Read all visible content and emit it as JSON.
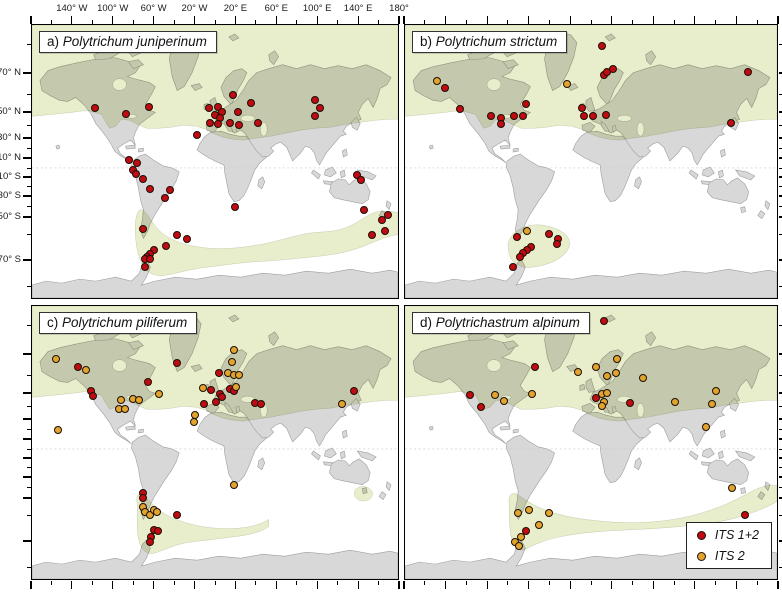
{
  "chart_data": {
    "type": "map",
    "description": "Four world-map panels showing occurrence records of four moss species; markers coded by ITS sequence type; pale green band = distribution range.",
    "axes": {
      "top_labels": [
        "140° W",
        "100° W",
        "60° W",
        "20° W",
        "20° E",
        "60° E",
        "100° E",
        "140° E",
        "180°"
      ],
      "left_labels": [
        "70° N",
        "50° N",
        "30° N",
        "10° N",
        "10° S",
        "30° S",
        "50° S",
        "70° S"
      ]
    },
    "legend": {
      "items": [
        {
          "key": "red",
          "label": "ITS 1+2"
        },
        {
          "key": "orange",
          "label": "ITS 2"
        }
      ]
    },
    "colors": {
      "marker_red": "#c00b12",
      "marker_orange": "#e3a42f",
      "marker_outline": "#1b1006",
      "land": "#d8d8d8",
      "land_border": "#9e9e9e",
      "ocean": "#ffffff",
      "range_band": "#e8edcb",
      "equator_line": "#c9c9c9"
    },
    "panels": [
      {
        "id": "a",
        "prefix": "a)",
        "species": "Polytrichum juniperinum",
        "markers": [
          [
            17.1,
            30.5,
            "r"
          ],
          [
            25.8,
            32.7,
            "r"
          ],
          [
            32.1,
            30.2,
            "r"
          ],
          [
            54.9,
            25.5,
            "r"
          ],
          [
            48.4,
            30.5,
            "r"
          ],
          [
            50.8,
            30.2,
            "r"
          ],
          [
            51.9,
            32.0,
            "r"
          ],
          [
            50.0,
            33.1,
            "r"
          ],
          [
            51.4,
            34.2,
            "r"
          ],
          [
            48.6,
            36.0,
            "r"
          ],
          [
            50.8,
            36.4,
            "r"
          ],
          [
            54.1,
            36.0,
            "r"
          ],
          [
            56.3,
            32.0,
            "r"
          ],
          [
            56.5,
            36.7,
            "r"
          ],
          [
            59.8,
            28.7,
            "r"
          ],
          [
            61.7,
            36.0,
            "r"
          ],
          [
            45.1,
            40.4,
            "r"
          ],
          [
            77.2,
            27.6,
            "r"
          ],
          [
            78.8,
            30.5,
            "r"
          ],
          [
            77.4,
            33.5,
            "r"
          ],
          [
            26.6,
            49.5,
            "r"
          ],
          [
            28.8,
            50.5,
            "r"
          ],
          [
            27.7,
            53.1,
            "r"
          ],
          [
            28.5,
            54.5,
            "r"
          ],
          [
            30.4,
            56.4,
            "r"
          ],
          [
            32.3,
            60.0,
            "r"
          ],
          [
            37.8,
            60.4,
            "r"
          ],
          [
            36.4,
            63.3,
            "r"
          ],
          [
            55.4,
            66.5,
            "r"
          ],
          [
            88.9,
            54.9,
            "r"
          ],
          [
            89.9,
            56.7,
            "r"
          ],
          [
            90.8,
            67.6,
            "r"
          ],
          [
            95.7,
            71.3,
            "r"
          ],
          [
            97.3,
            69.5,
            "r"
          ],
          [
            96.5,
            75.3,
            "r"
          ],
          [
            92.9,
            77.1,
            "r"
          ],
          [
            30.4,
            74.9,
            "r"
          ],
          [
            39.7,
            77.1,
            "r"
          ],
          [
            42.4,
            78.5,
            "r"
          ],
          [
            36.7,
            81.1,
            "r"
          ],
          [
            33.4,
            82.5,
            "r"
          ],
          [
            32.3,
            84.0,
            "r"
          ],
          [
            31.5,
            85.1,
            "r"
          ],
          [
            31.0,
            85.8,
            "r"
          ],
          [
            32.3,
            85.8,
            "r"
          ],
          [
            31.0,
            88.7,
            "r"
          ]
        ]
      },
      {
        "id": "b",
        "prefix": "b)",
        "species": "Polytrichum strictum",
        "markers": [
          [
            52.9,
            7.6,
            "r"
          ],
          [
            53.5,
            18.2,
            "r"
          ],
          [
            54.3,
            17.1,
            "r"
          ],
          [
            55.9,
            16.0,
            "r"
          ],
          [
            92.2,
            17.1,
            "r"
          ],
          [
            8.6,
            20.4,
            "o"
          ],
          [
            10.7,
            22.9,
            "r"
          ],
          [
            43.6,
            21.5,
            "o"
          ],
          [
            14.7,
            30.9,
            "r"
          ],
          [
            32.6,
            29.1,
            "r"
          ],
          [
            23.0,
            33.5,
            "r"
          ],
          [
            25.9,
            34.2,
            "r"
          ],
          [
            25.9,
            36.4,
            "r"
          ],
          [
            29.4,
            33.5,
            "r"
          ],
          [
            31.8,
            33.5,
            "r"
          ],
          [
            47.6,
            30.5,
            "r"
          ],
          [
            48.1,
            33.5,
            "r"
          ],
          [
            50.5,
            33.5,
            "r"
          ],
          [
            54.0,
            33.1,
            "r"
          ],
          [
            87.7,
            36.0,
            "r"
          ],
          [
            32.9,
            75.3,
            "o"
          ],
          [
            30.2,
            77.8,
            "r"
          ],
          [
            38.8,
            76.7,
            "r"
          ],
          [
            41.2,
            78.5,
            "r"
          ],
          [
            40.9,
            80.4,
            "r"
          ],
          [
            34.0,
            81.5,
            "r"
          ],
          [
            32.9,
            82.5,
            "r"
          ],
          [
            31.8,
            83.6,
            "r"
          ],
          [
            31.0,
            85.1,
            "r"
          ],
          [
            28.9,
            88.7,
            "r"
          ]
        ]
      },
      {
        "id": "c",
        "prefix": "c)",
        "species": "Polytrichum piliferum",
        "markers": [
          [
            6.5,
            19.3,
            "o"
          ],
          [
            12.5,
            22.2,
            "r"
          ],
          [
            14.7,
            23.6,
            "o"
          ],
          [
            16.0,
            31.3,
            "r"
          ],
          [
            16.6,
            33.1,
            "r"
          ],
          [
            24.2,
            34.5,
            "o"
          ],
          [
            27.7,
            34.2,
            "o"
          ],
          [
            29.1,
            34.5,
            "o"
          ],
          [
            23.9,
            37.8,
            "o"
          ],
          [
            25.5,
            37.8,
            "o"
          ],
          [
            31.8,
            28.0,
            "r"
          ],
          [
            34.8,
            32.4,
            "o"
          ],
          [
            39.7,
            20.7,
            "r"
          ],
          [
            7.1,
            45.5,
            "o"
          ],
          [
            46.7,
            30.2,
            "o"
          ],
          [
            55.2,
            16.0,
            "o"
          ],
          [
            54.6,
            20.4,
            "o"
          ],
          [
            51.1,
            24.4,
            "r"
          ],
          [
            53.5,
            24.7,
            "o"
          ],
          [
            55.2,
            25.1,
            "o"
          ],
          [
            56.5,
            25.1,
            "o"
          ],
          [
            48.9,
            30.9,
            "r"
          ],
          [
            47.0,
            36.0,
            "r"
          ],
          [
            50.3,
            35.3,
            "r"
          ],
          [
            51.4,
            32.4,
            "r"
          ],
          [
            51.9,
            33.5,
            "r"
          ],
          [
            54.1,
            30.5,
            "r"
          ],
          [
            55.2,
            31.3,
            "r"
          ],
          [
            55.7,
            29.5,
            "o"
          ],
          [
            60.9,
            35.6,
            "r"
          ],
          [
            62.5,
            36.0,
            "r"
          ],
          [
            44.6,
            40.0,
            "o"
          ],
          [
            44.3,
            42.5,
            "o"
          ],
          [
            84.8,
            36.0,
            "o"
          ],
          [
            88.0,
            31.3,
            "r"
          ],
          [
            55.2,
            65.5,
            "o"
          ],
          [
            30.4,
            68.4,
            "r"
          ],
          [
            30.4,
            70.5,
            "r"
          ],
          [
            30.4,
            73.5,
            "o"
          ],
          [
            31.0,
            75.6,
            "o"
          ],
          [
            32.3,
            76.7,
            "o"
          ],
          [
            33.4,
            74.9,
            "o"
          ],
          [
            34.2,
            75.3,
            "o"
          ],
          [
            39.7,
            76.4,
            "r"
          ],
          [
            33.4,
            82.2,
            "r"
          ],
          [
            34.5,
            82.5,
            "r"
          ],
          [
            32.6,
            84.7,
            "r"
          ],
          [
            32.3,
            86.5,
            "r"
          ]
        ]
      },
      {
        "id": "d",
        "prefix": "d)",
        "species": "Polytrichastrum alpinum",
        "markers": [
          [
            53.5,
            5.5,
            "r"
          ],
          [
            35.0,
            22.5,
            "r"
          ],
          [
            46.5,
            24.0,
            "o"
          ],
          [
            51.3,
            22.5,
            "o"
          ],
          [
            57.0,
            19.3,
            "o"
          ],
          [
            54.3,
            25.8,
            "o"
          ],
          [
            56.7,
            24.4,
            "o"
          ],
          [
            63.9,
            26.5,
            "o"
          ],
          [
            17.4,
            32.7,
            "r"
          ],
          [
            24.1,
            32.7,
            "o"
          ],
          [
            26.7,
            34.9,
            "o"
          ],
          [
            34.2,
            32.4,
            "o"
          ],
          [
            20.3,
            37.1,
            "r"
          ],
          [
            51.3,
            33.8,
            "r"
          ],
          [
            52.9,
            32.4,
            "o"
          ],
          [
            54.3,
            32.0,
            "o"
          ],
          [
            53.5,
            35.3,
            "o"
          ],
          [
            52.9,
            36.7,
            "o"
          ],
          [
            60.4,
            35.6,
            "r"
          ],
          [
            72.7,
            35.3,
            "o"
          ],
          [
            83.7,
            31.3,
            "o"
          ],
          [
            82.6,
            36.0,
            "o"
          ],
          [
            81.0,
            44.4,
            "o"
          ],
          [
            88.0,
            66.5,
            "o"
          ],
          [
            91.4,
            76.7,
            "r"
          ],
          [
            30.5,
            76.0,
            "o"
          ],
          [
            33.2,
            74.9,
            "o"
          ],
          [
            38.8,
            76.0,
            "o"
          ],
          [
            36.1,
            80.4,
            "o"
          ],
          [
            32.6,
            82.5,
            "r"
          ],
          [
            31.3,
            84.7,
            "o"
          ],
          [
            29.7,
            86.5,
            "o"
          ],
          [
            30.7,
            88.0,
            "o"
          ]
        ]
      }
    ]
  }
}
